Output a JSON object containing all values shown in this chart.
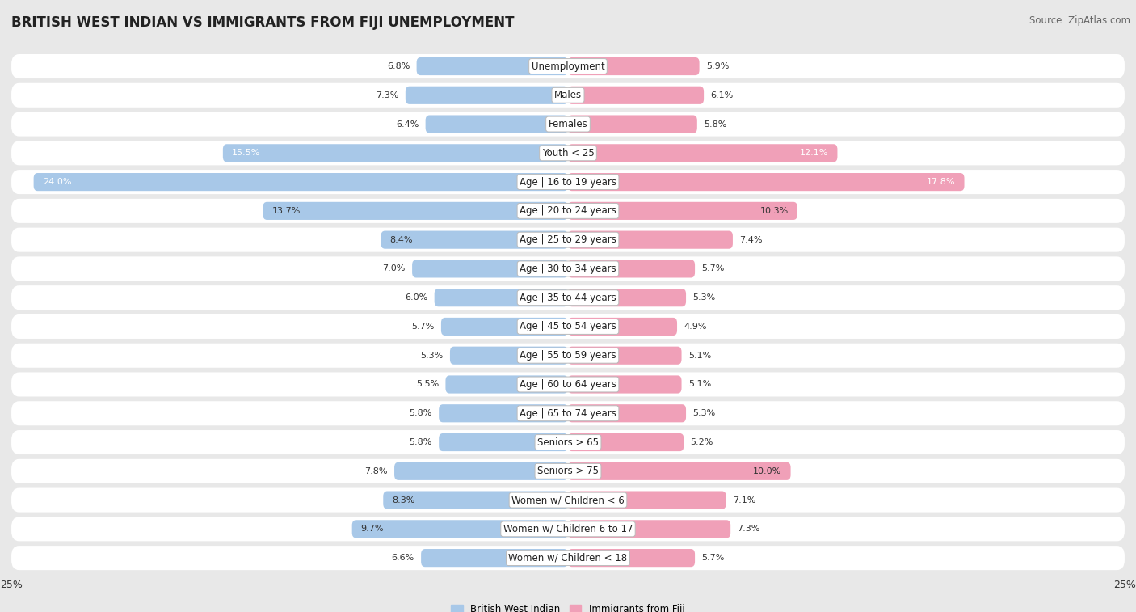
{
  "title": "BRITISH WEST INDIAN VS IMMIGRANTS FROM FIJI UNEMPLOYMENT",
  "source": "Source: ZipAtlas.com",
  "categories": [
    "Unemployment",
    "Males",
    "Females",
    "Youth < 25",
    "Age | 16 to 19 years",
    "Age | 20 to 24 years",
    "Age | 25 to 29 years",
    "Age | 30 to 34 years",
    "Age | 35 to 44 years",
    "Age | 45 to 54 years",
    "Age | 55 to 59 years",
    "Age | 60 to 64 years",
    "Age | 65 to 74 years",
    "Seniors > 65",
    "Seniors > 75",
    "Women w/ Children < 6",
    "Women w/ Children 6 to 17",
    "Women w/ Children < 18"
  ],
  "left_values": [
    6.8,
    7.3,
    6.4,
    15.5,
    24.0,
    13.7,
    8.4,
    7.0,
    6.0,
    5.7,
    5.3,
    5.5,
    5.8,
    5.8,
    7.8,
    8.3,
    9.7,
    6.6
  ],
  "right_values": [
    5.9,
    6.1,
    5.8,
    12.1,
    17.8,
    10.3,
    7.4,
    5.7,
    5.3,
    4.9,
    5.1,
    5.1,
    5.3,
    5.2,
    10.0,
    7.1,
    7.3,
    5.7
  ],
  "left_color": "#a8c8e8",
  "right_color": "#f0a0b8",
  "bar_height": 0.62,
  "xlim": 25.0,
  "background_color": "#e8e8e8",
  "row_bg_color": "#ffffff",
  "legend_left": "British West Indian",
  "legend_right": "Immigrants from Fiji",
  "title_fontsize": 12,
  "source_fontsize": 8.5,
  "label_fontsize": 8.5,
  "value_fontsize": 8.0,
  "axis_label_fontsize": 9
}
